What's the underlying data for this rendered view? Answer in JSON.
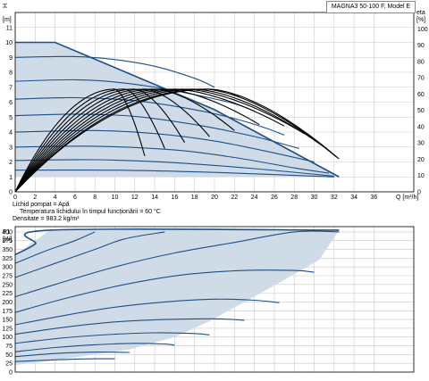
{
  "model_label": "MAGNA3 50-100 F, Model E",
  "info": {
    "fluid": "Lichid pompat = Apă",
    "temperature": "Temperatura lichidului în timpul funcționării = 60 °C",
    "density": "Densitate = 983.2  kg/m³"
  },
  "colors": {
    "envelope_fill": "#cfdce8",
    "envelope_edge": "#1f4f86",
    "curve": "#1f4f86",
    "efficiency": "#000000",
    "grid": "#c8c8c8"
  },
  "chart_data": [
    {
      "type": "line",
      "title": "",
      "xlabel": "Q [m³/h]",
      "ylabel": "H [m]",
      "y2label": "eta [%]",
      "xlim": [
        0,
        40
      ],
      "ylim": [
        0,
        12
      ],
      "y2lim": [
        0,
        110
      ],
      "x_ticks": [
        0,
        2,
        4,
        6,
        8,
        10,
        12,
        14,
        16,
        18,
        20,
        22,
        24,
        26,
        28,
        30,
        32,
        34,
        36
      ],
      "y_ticks": [
        0,
        1,
        2,
        3,
        4,
        5,
        6,
        7,
        8,
        9,
        10,
        11
      ],
      "y2_ticks": [
        0,
        10,
        20,
        30,
        40,
        50,
        60,
        70,
        80,
        90,
        100
      ],
      "grid": true,
      "envelope": [
        [
          0,
          10
        ],
        [
          4,
          10
        ],
        [
          20,
          5.5
        ],
        [
          32.5,
          1.0
        ],
        [
          0,
          1.0
        ]
      ],
      "series": [
        {
          "values": [
            [
              0,
              9.0
            ],
            [
              6,
              9.05
            ],
            [
              10,
              8.85
            ],
            [
              14,
              8.4
            ],
            [
              18,
              7.6
            ],
            [
              20,
              7.0
            ]
          ]
        },
        {
          "values": [
            [
              0,
              7.4
            ],
            [
              6,
              7.5
            ],
            [
              10,
              7.35
            ],
            [
              14,
              7.0
            ],
            [
              18,
              6.5
            ],
            [
              22,
              5.9
            ],
            [
              24,
              5.4
            ]
          ]
        },
        {
          "values": [
            [
              0,
              6.2
            ],
            [
              6,
              6.3
            ],
            [
              12,
              6.1
            ],
            [
              18,
              5.5
            ],
            [
              22,
              4.9
            ],
            [
              25,
              4.3
            ],
            [
              27,
              3.8
            ]
          ]
        },
        {
          "values": [
            [
              0,
              5.1
            ],
            [
              6,
              5.2
            ],
            [
              12,
              5.05
            ],
            [
              18,
              4.5
            ],
            [
              24,
              3.7
            ],
            [
              28.5,
              2.9
            ]
          ]
        },
        {
          "values": [
            [
              0,
              4.0
            ],
            [
              8,
              4.1
            ],
            [
              14,
              3.9
            ],
            [
              20,
              3.4
            ],
            [
              26,
              2.6
            ],
            [
              30,
              2.0
            ]
          ]
        },
        {
          "values": [
            [
              0,
              3.0
            ],
            [
              8,
              3.05
            ],
            [
              16,
              2.8
            ],
            [
              22,
              2.3
            ],
            [
              28,
              1.6
            ],
            [
              31.5,
              1.25
            ]
          ]
        },
        {
          "values": [
            [
              0,
              2.1
            ],
            [
              8,
              2.15
            ],
            [
              16,
              1.95
            ],
            [
              24,
              1.55
            ],
            [
              32,
              1.05
            ]
          ]
        },
        {
          "values": [
            [
              0,
              1.45
            ],
            [
              10,
              1.45
            ],
            [
              20,
              1.3
            ],
            [
              32,
              1.0
            ]
          ]
        }
      ],
      "efficiency_curves": [
        {
          "peak_x": 10,
          "end_x": 13,
          "end_y": 2.4
        },
        {
          "peak_x": 11,
          "end_x": 15,
          "end_y": 2.9
        },
        {
          "peak_x": 12,
          "end_x": 17,
          "end_y": 3.3
        },
        {
          "peak_x": 13,
          "end_x": 19.5,
          "end_y": 3.7
        },
        {
          "peak_x": 14,
          "end_x": 22,
          "end_y": 4.1
        },
        {
          "peak_x": 15,
          "end_x": 24.5,
          "end_y": 4.5
        },
        {
          "peak_x": 16,
          "end_x": 27,
          "end_y": 4.4
        },
        {
          "peak_x": 17,
          "end_x": 29,
          "end_y": 3.9
        },
        {
          "peak_x": 18,
          "end_x": 31,
          "end_y": 3.0
        },
        {
          "peak_x": 19,
          "end_x": 32.3,
          "end_y": 2.3
        },
        {
          "peak_x": 19.5,
          "end_x": 32.5,
          "end_y": 2.2
        }
      ],
      "efficiency_peak_eta": 63
    },
    {
      "type": "line",
      "title": "",
      "xlabel": "",
      "ylabel": "P1 [W]",
      "xlim": [
        0,
        40
      ],
      "ylim": [
        0,
        415
      ],
      "y_ticks": [
        0,
        25,
        50,
        75,
        100,
        125,
        150,
        175,
        200,
        225,
        250,
        275,
        300,
        325,
        350,
        375,
        400
      ],
      "grid": true,
      "envelope": [
        [
          0,
          20
        ],
        [
          0,
          335
        ],
        [
          3.5,
          405
        ],
        [
          32.5,
          405
        ],
        [
          30.5,
          320
        ],
        [
          26.5,
          255
        ],
        [
          23,
          200
        ],
        [
          19.5,
          145
        ],
        [
          16,
          100
        ],
        [
          11.5,
          65
        ],
        [
          5,
          38
        ],
        [
          0,
          20
        ]
      ],
      "series": [
        {
          "values": [
            [
              0,
              335
            ],
            [
              2,
              365
            ],
            [
              3.5,
              405
            ],
            [
              32.5,
              405
            ]
          ]
        },
        {
          "values": [
            [
              0,
              310
            ],
            [
              3,
              345
            ],
            [
              6,
              375
            ],
            [
              8,
              400
            ]
          ]
        },
        {
          "values": [
            [
              0,
              270
            ],
            [
              4,
              310
            ],
            [
              8,
              350
            ],
            [
              11,
              380
            ],
            [
              15,
              400
            ]
          ]
        },
        {
          "values": [
            [
              0,
              215
            ],
            [
              4,
              250
            ],
            [
              10,
              300
            ],
            [
              16,
              340
            ],
            [
              22,
              370
            ],
            [
              28,
              400
            ],
            [
              32.5,
              400
            ]
          ]
        },
        {
          "values": [
            [
              0,
              170
            ],
            [
              5,
              210
            ],
            [
              11,
              250
            ],
            [
              17,
              278
            ],
            [
              23,
              290
            ],
            [
              28,
              290
            ],
            [
              30,
              285
            ]
          ]
        },
        {
          "values": [
            [
              0,
              135
            ],
            [
              5,
              162
            ],
            [
              10,
              185
            ],
            [
              15,
              200
            ],
            [
              20,
              208
            ],
            [
              24,
              205
            ],
            [
              26.5,
              198
            ]
          ]
        },
        {
          "values": [
            [
              0,
              108
            ],
            [
              5,
              128
            ],
            [
              10,
              143
            ],
            [
              15,
              150
            ],
            [
              20,
              152
            ],
            [
              23,
              148
            ]
          ]
        },
        {
          "values": [
            [
              0,
              82
            ],
            [
              5,
              98
            ],
            [
              10,
              108
            ],
            [
              14,
              112
            ],
            [
              18,
              110
            ],
            [
              19.5,
              106
            ]
          ]
        },
        {
          "values": [
            [
              0,
              58
            ],
            [
              4,
              70
            ],
            [
              8,
              78
            ],
            [
              12,
              82
            ],
            [
              15,
              80
            ],
            [
              16,
              77
            ]
          ]
        },
        {
          "values": [
            [
              0,
              44
            ],
            [
              4,
              53
            ],
            [
              8,
              57
            ],
            [
              11.5,
              56
            ]
          ]
        },
        {
          "values": [
            [
              0,
              30
            ],
            [
              4,
              35
            ],
            [
              8,
              38
            ],
            [
              10,
              38
            ]
          ]
        }
      ]
    }
  ]
}
